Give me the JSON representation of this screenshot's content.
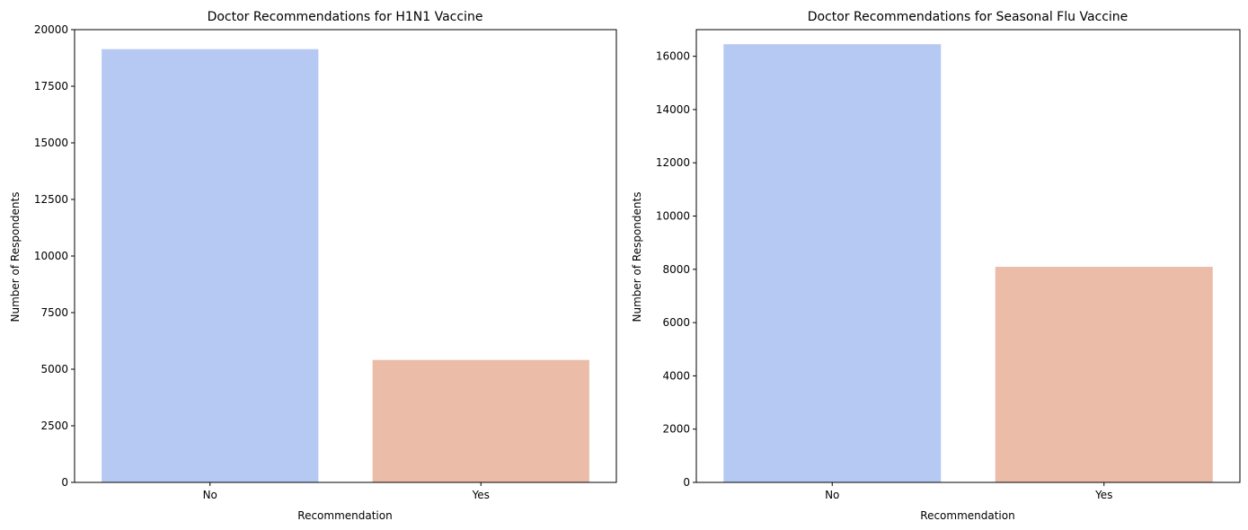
{
  "chart_data": [
    {
      "type": "bar",
      "title": "Doctor Recommendations for H1N1 Vaccine",
      "xlabel": "Recommendation",
      "ylabel": "Number of Respondents",
      "categories": [
        "No",
        "Yes"
      ],
      "values": [
        19139,
        5408
      ],
      "colors": [
        "#b6c9f2",
        "#ebbca7"
      ],
      "ylim": [
        0,
        20000
      ],
      "yticks": [
        0,
        2500,
        5000,
        7500,
        10000,
        12500,
        15000,
        17500,
        20000
      ],
      "grid": false
    },
    {
      "type": "bar",
      "title": "Doctor Recommendations for Seasonal Flu Vaccine",
      "xlabel": "Recommendation",
      "ylabel": "Number of Respondents",
      "categories": [
        "No",
        "Yes"
      ],
      "values": [
        16453,
        8094
      ],
      "colors": [
        "#b6c9f2",
        "#ebbca7"
      ],
      "ylim": [
        0,
        17000
      ],
      "yticks": [
        0,
        2000,
        4000,
        6000,
        8000,
        10000,
        12000,
        14000,
        16000
      ],
      "grid": false
    }
  ]
}
